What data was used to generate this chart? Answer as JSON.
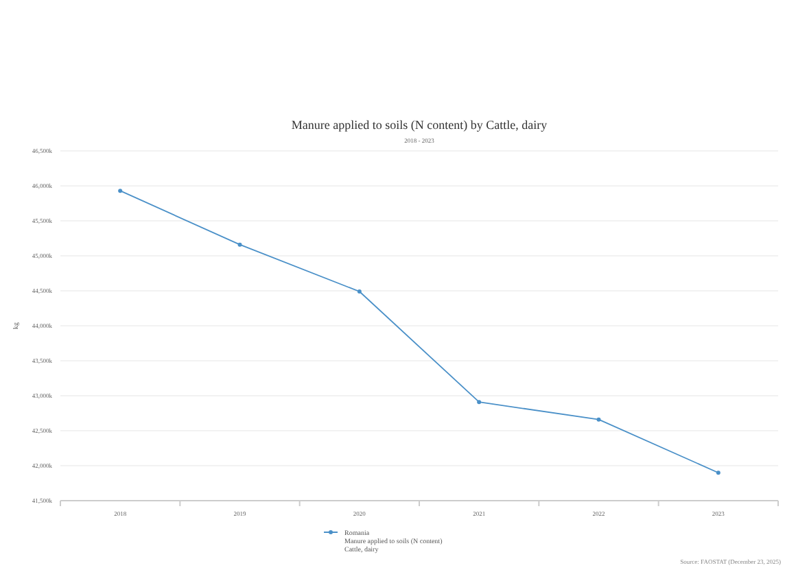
{
  "chart_data": {
    "type": "line",
    "title": "Manure applied to soils (N content) by Cattle, dairy",
    "subtitle": "2018 - 2023",
    "ylabel": "kg",
    "categories": [
      "2018",
      "2019",
      "2020",
      "2021",
      "2022",
      "2023"
    ],
    "series": [
      {
        "name": "Romania\nManure applied to soils (N content)\nCattle, dairy",
        "color": "#4a90c8",
        "values": [
          45930000,
          45160000,
          44490000,
          42910000,
          42660000,
          41900000
        ]
      }
    ],
    "ylim": [
      41500000,
      46500000
    ],
    "yticks": [
      {
        "value": 41500000,
        "label": "41,500k"
      },
      {
        "value": 42000000,
        "label": "42,000k"
      },
      {
        "value": 42500000,
        "label": "42,500k"
      },
      {
        "value": 43000000,
        "label": "43,000k"
      },
      {
        "value": 43500000,
        "label": "43,500k"
      },
      {
        "value": 44000000,
        "label": "44,000k"
      },
      {
        "value": 44500000,
        "label": "44,500k"
      },
      {
        "value": 45000000,
        "label": "45,000k"
      },
      {
        "value": 45500000,
        "label": "45,500k"
      },
      {
        "value": 46000000,
        "label": "46,000k"
      },
      {
        "value": 46500000,
        "label": "46,500k"
      }
    ],
    "grid": "y",
    "legend": "bottom left",
    "marker": "circle",
    "line_style": "solid",
    "annotations": [
      "Source: FAOSTAT (December 23, 2025)"
    ]
  }
}
